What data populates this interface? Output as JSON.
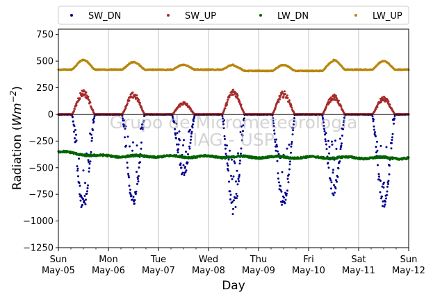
{
  "chart_data": {
    "type": "scatter",
    "xlabel": "Day",
    "ylabel": "Radiation (Wm⁻²)",
    "ylabel_main": "Radiation (",
    "ylabel_unit": "Wm",
    "ylabel_exp": "−2",
    "ylabel_close": ")",
    "ylim": [
      -1250,
      800
    ],
    "xlim": [
      0,
      7
    ],
    "yticks": [
      -1250,
      -1000,
      -750,
      -500,
      -250,
      0,
      250,
      500,
      750
    ],
    "ytick_labels": [
      "−1250",
      "−1000",
      "−750",
      "−500",
      "−250",
      "0",
      "250",
      "500",
      "750"
    ],
    "xticks": [
      {
        "day": "Sun",
        "date": "May-05"
      },
      {
        "day": "Mon",
        "date": "May-06"
      },
      {
        "day": "Tue",
        "date": "May-07"
      },
      {
        "day": "Wed",
        "date": "May-08"
      },
      {
        "day": "Thu",
        "date": "May-09"
      },
      {
        "day": "Fri",
        "date": "May-10"
      },
      {
        "day": "Sat",
        "date": "May-11"
      },
      {
        "day": "Sun",
        "date": "May-12"
      }
    ],
    "grid": "vertical",
    "legend_placement": "top, outside",
    "zero_line": true,
    "watermark": [
      "Grupo de Micrometeorologia",
      "IAG - USP"
    ],
    "series": [
      {
        "name": "SW_DN",
        "color": "#00008b",
        "nighttime": 0,
        "daily_min": [
          -920,
          -870,
          -590,
          -950,
          -890,
          -780,
          -890
        ]
      },
      {
        "name": "SW_UP",
        "color": "#a52a2a",
        "nighttime": 0,
        "daily_max": [
          225,
          200,
          115,
          230,
          210,
          180,
          160
        ]
      },
      {
        "name": "LW_DN",
        "color": "#006400",
        "start": -350,
        "typical": -390,
        "end": -410
      },
      {
        "name": "LW_UP",
        "color": "#b8860b",
        "night_level": 420,
        "daily_max": [
          510,
          490,
          465,
          465,
          475,
          510,
          500
        ]
      }
    ]
  }
}
